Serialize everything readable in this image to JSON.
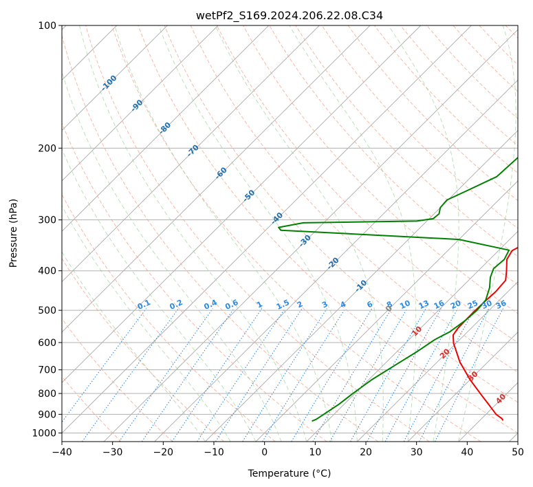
{
  "chart_data": {
    "type": "line",
    "title": "wetPf2_S169.2024.206.22.08.C34",
    "xlabel": "Temperature (°C)",
    "ylabel": "Pressure (hPa)",
    "xlim": [
      -40,
      50
    ],
    "ylim": [
      1050,
      100
    ],
    "y_scale": "log",
    "grid": true,
    "x_ticks": [
      -40,
      -30,
      -20,
      -10,
      0,
      10,
      20,
      30,
      40,
      50
    ],
    "y_ticks": [
      1000,
      900,
      800,
      700,
      600,
      500,
      400,
      300,
      200,
      100
    ],
    "series": [
      {
        "key": "temperature",
        "color": "#ee0000",
        "points": [
          [
            44.6,
            932
          ],
          [
            44,
            922
          ],
          [
            42,
            900
          ],
          [
            38.5,
            850
          ],
          [
            35.5,
            810
          ],
          [
            30,
            740
          ],
          [
            24.5,
            670
          ],
          [
            19.5,
            602
          ],
          [
            17.8,
            575
          ],
          [
            17.4,
            553
          ],
          [
            17.3,
            525
          ],
          [
            17.3,
            502
          ],
          [
            17.4,
            474
          ],
          [
            17.6,
            450
          ],
          [
            17.3,
            422
          ],
          [
            15.6,
            400
          ],
          [
            13.4,
            375
          ],
          [
            12.7,
            357
          ],
          [
            14,
            342
          ],
          [
            17,
            327
          ],
          [
            17.3,
            313
          ],
          [
            15.6,
            280
          ],
          [
            12.5,
            240
          ],
          [
            8.5,
            202
          ],
          [
            6.3,
            180
          ],
          [
            5.8,
            160
          ],
          [
            5.0,
            140
          ],
          [
            4.2,
            125
          ],
          [
            5.5,
            112
          ],
          [
            8.5,
            100
          ]
        ]
      },
      {
        "key": "dewpoint",
        "color": "#008000",
        "points": [
          [
            7.0,
            935
          ],
          [
            7.5,
            925
          ],
          [
            8.0,
            900
          ],
          [
            9.0,
            850
          ],
          [
            9.6,
            800
          ],
          [
            10.6,
            740
          ],
          [
            12.4,
            680
          ],
          [
            14.0,
            630
          ],
          [
            15.1,
            590
          ],
          [
            16.5,
            565
          ],
          [
            17.3,
            530
          ],
          [
            17.6,
            500
          ],
          [
            17.3,
            472
          ],
          [
            15.6,
            440
          ],
          [
            13.7,
            415
          ],
          [
            12.6,
            395
          ],
          [
            12.9,
            375
          ],
          [
            12.0,
            356
          ],
          [
            0,
            335
          ],
          [
            -37.0,
            318
          ],
          [
            -38,
            313
          ],
          [
            -34,
            305
          ],
          [
            -12,
            302
          ],
          [
            -9.2,
            298
          ],
          [
            -9.0,
            290
          ],
          [
            -10,
            280
          ],
          [
            -10.2,
            268
          ],
          [
            -8.2,
            255
          ],
          [
            -5.0,
            235
          ],
          [
            -4.6,
            210
          ],
          [
            -4.0,
            200
          ],
          [
            -3.4,
            180
          ],
          [
            -3.8,
            160
          ],
          [
            -5.2,
            145
          ],
          [
            -5.0,
            135
          ],
          [
            -2.5,
            120
          ],
          [
            0,
            110
          ],
          [
            1.0,
            100
          ]
        ]
      }
    ],
    "isotherm_labels": [
      "-100",
      "-90",
      "-80",
      "-70",
      "-60",
      "-50",
      "-40",
      "-30",
      "-20",
      "-10",
      "0",
      "10",
      "20",
      "30",
      "40"
    ],
    "mixing_ratio_labels": [
      "0.1",
      "0.2",
      "0.4",
      "0.6",
      "1",
      "1.5",
      "2",
      "3",
      "4",
      "6",
      "8",
      "10",
      "13",
      "16",
      "20",
      "25",
      "30",
      "36"
    ]
  }
}
